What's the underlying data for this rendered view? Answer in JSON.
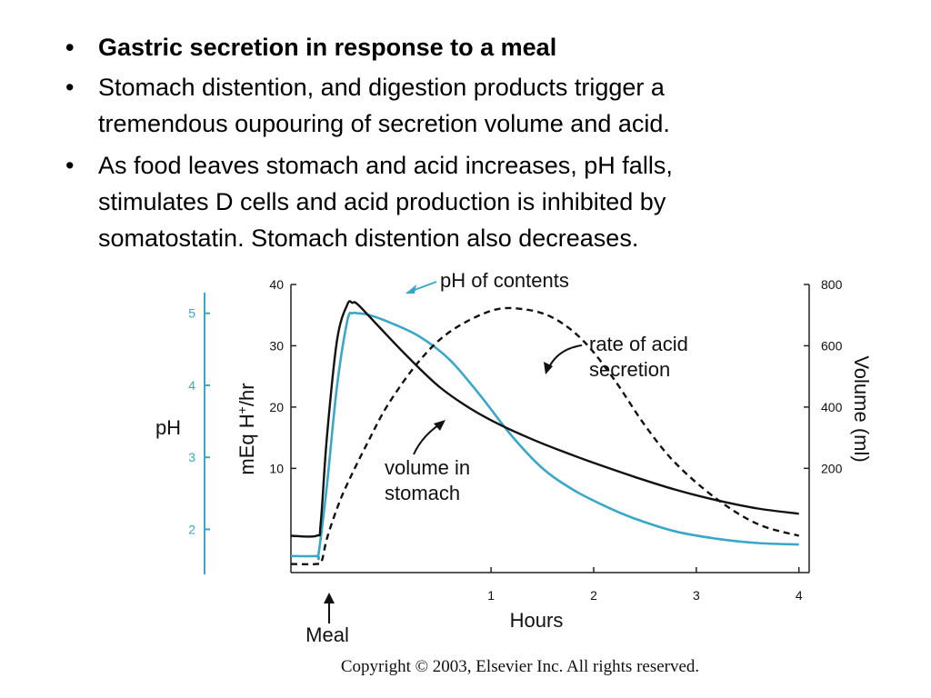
{
  "bullets": [
    {
      "lines": [
        "Gastric secretion in response to a meal"
      ]
    },
    {
      "lines": [
        "Stomach distention, and digestion products trigger a",
        "tremendous oupouring of secretion volume and acid."
      ]
    },
    {
      "lines": [
        "As food leaves stomach and acid increases, pH falls,",
        "stimulates D cells and acid production is inhibited by",
        "somatostatin. Stomach distention also decreases."
      ]
    }
  ],
  "bullet_char": "•",
  "chart_data": {
    "type": "line",
    "xlabel": "Hours",
    "x_ticks": [
      "1",
      "2",
      "3",
      "4"
    ],
    "xlim": [
      -0.95,
      4.1
    ],
    "left_axis": {
      "label_main": "mEq H",
      "label_sup": "+",
      "label_tail": "/hr",
      "ticks": [
        "10",
        "20",
        "30",
        "40"
      ],
      "ylim": [
        -7,
        40
      ]
    },
    "ph_axis": {
      "label": "pH",
      "ticks": [
        "2",
        "3",
        "4",
        "5"
      ],
      "ylim": [
        1.4,
        5.4
      ]
    },
    "right_axis": {
      "label": "Volume (ml)",
      "ticks": [
        "200",
        "400",
        "600",
        "800"
      ],
      "ylim": [
        -140,
        800
      ]
    },
    "annotations": {
      "meal": "Meal",
      "ph_of_contents": "pH of contents",
      "rate_line1": "rate of acid",
      "rate_line2": "secretion",
      "volume_line1": "volume in",
      "volume_line2": "stomach"
    },
    "series": [
      {
        "name": "pH of contents",
        "axis": "ph",
        "color": "#3aa7c7",
        "x": [
          -0.95,
          -0.7,
          -0.68,
          -0.6,
          -0.5,
          -0.4,
          -0.35,
          -0.3,
          -0.2,
          0,
          0.3,
          0.6,
          0.9,
          1.2,
          1.5,
          1.8,
          2.1,
          2.4,
          2.8,
          3.2,
          3.6,
          4.0
        ],
        "y": [
          1.63,
          1.63,
          1.67,
          2.6,
          4.0,
          4.9,
          5.0,
          5.0,
          4.98,
          4.88,
          4.68,
          4.35,
          3.85,
          3.3,
          2.85,
          2.55,
          2.33,
          2.15,
          1.97,
          1.87,
          1.81,
          1.79
        ]
      },
      {
        "name": "volume in stomach",
        "axis": "right",
        "color": "#111111",
        "x": [
          -0.95,
          -0.7,
          -0.66,
          -0.6,
          -0.5,
          -0.4,
          -0.35,
          -0.3,
          -0.1,
          0.2,
          0.5,
          0.8,
          1.1,
          1.4,
          1.7,
          2.0,
          2.4,
          2.8,
          3.2,
          3.6,
          4.0
        ],
        "y": [
          -20,
          -20,
          20,
          300,
          620,
          735,
          740,
          735,
          665,
          560,
          465,
          395,
          340,
          295,
          255,
          218,
          172,
          130,
          96,
          69,
          52
        ]
      },
      {
        "name": "rate of acid secretion",
        "axis": "left",
        "color": "#111111",
        "dashed": true,
        "x": [
          -0.95,
          -0.7,
          -0.65,
          -0.6,
          -0.5,
          -0.4,
          -0.2,
          0,
          0.3,
          0.6,
          1.0,
          1.3,
          1.6,
          1.9,
          2.2,
          2.5,
          2.8,
          3.2,
          3.6,
          4.0
        ],
        "y": [
          -5.6,
          -5.6,
          -5.1,
          -1.5,
          3.5,
          7.5,
          14.3,
          20.5,
          27.5,
          32.3,
          35.7,
          36.0,
          34.6,
          30.8,
          24.5,
          17.0,
          10.8,
          5.0,
          0.9,
          -1.0
        ]
      }
    ]
  },
  "copyright": "Copyright © 2003, Elsevier Inc. All rights reserved."
}
